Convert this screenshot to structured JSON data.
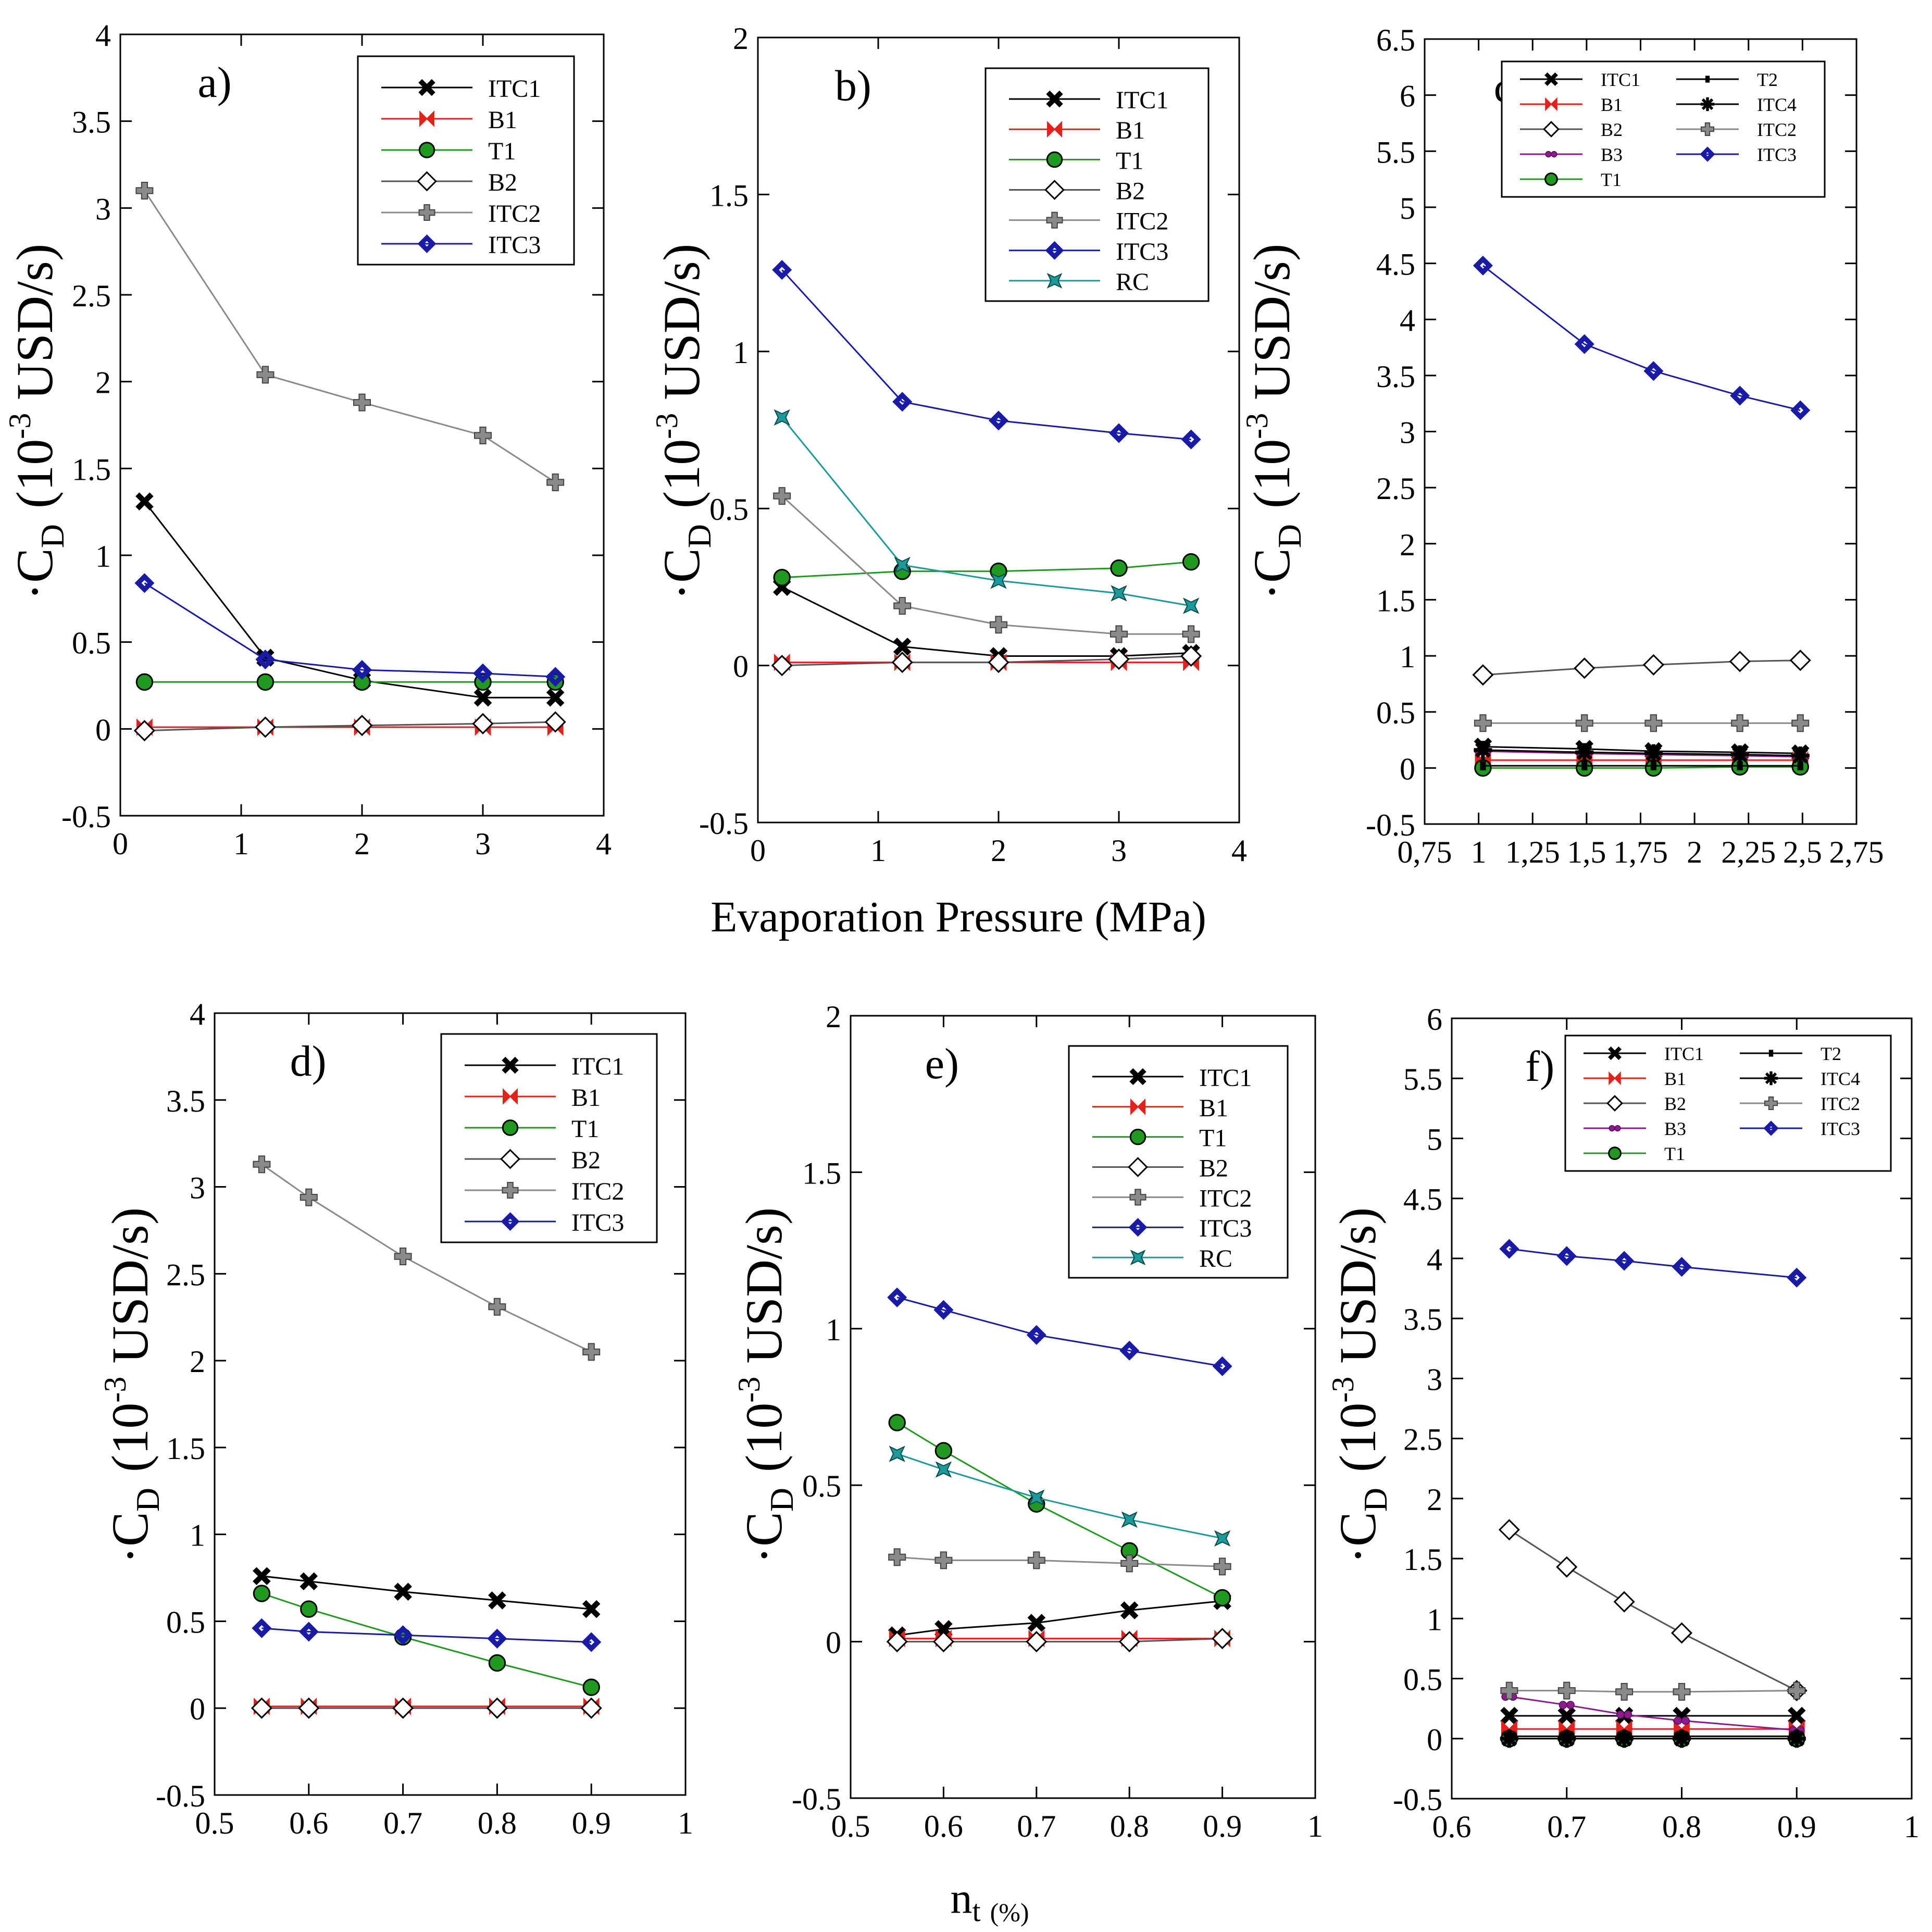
{
  "shared_labels": {
    "xlabel_top": "Evaporation Pressure (MPa)",
    "xlabel_bottom_main": "n",
    "xlabel_bottom_sub": "t",
    "xlabel_bottom_unit": "(%)",
    "ylabel_prefix": "·C",
    "ylabel_sub": "D",
    "ylabel_open": "(10",
    "ylabel_exp": "-3",
    "ylabel_rest": " USD/s)"
  },
  "colors": {
    "ITC1": "#000000",
    "B1": "#e8201a",
    "T1": "#1f9a1f",
    "B2": "#555555",
    "ITC2": "#8a8a8a",
    "ITC3": "#1a1aa8",
    "RC": "#1a9a9a",
    "B3": "#8e1a8e",
    "T2": "#000000",
    "ITC4": "#000000"
  },
  "chart_data": [
    {
      "panel": "a)",
      "type": "line",
      "xlim": [
        0,
        4
      ],
      "ylim": [
        -0.5,
        4
      ],
      "xticks": [
        0,
        1,
        2,
        3,
        4
      ],
      "xtick_labels": [
        "0",
        "1",
        "2",
        "3",
        "4"
      ],
      "yticks": [
        -0.5,
        0,
        0.5,
        1,
        1.5,
        2,
        2.5,
        3,
        3.5,
        4
      ],
      "ytick_labels": [
        "-0.5",
        "0",
        "0.5",
        "1",
        "1.5",
        "2",
        "2.5",
        "3",
        "3.5",
        "4"
      ],
      "legend_cols": 1,
      "legend": [
        "ITC1",
        "B1",
        "T1",
        "B2",
        "ITC2",
        "ITC3"
      ],
      "x": [
        0.2,
        1.2,
        2.0,
        3.0,
        3.6
      ],
      "series": [
        {
          "name": "ITC1",
          "values": [
            1.31,
            0.41,
            0.28,
            0.18,
            0.18
          ]
        },
        {
          "name": "B1",
          "values": [
            0.01,
            0.01,
            0.01,
            0.01,
            0.01
          ]
        },
        {
          "name": "T1",
          "values": [
            0.27,
            0.27,
            0.27,
            0.27,
            0.27
          ]
        },
        {
          "name": "B2",
          "values": [
            -0.01,
            0.01,
            0.02,
            0.03,
            0.04
          ]
        },
        {
          "name": "ITC2",
          "values": [
            3.1,
            2.04,
            1.88,
            1.69,
            1.42
          ]
        },
        {
          "name": "ITC3",
          "values": [
            0.84,
            0.4,
            0.34,
            0.32,
            0.3
          ]
        }
      ]
    },
    {
      "panel": "b)",
      "type": "line",
      "xlim": [
        0,
        4
      ],
      "ylim": [
        -0.5,
        2
      ],
      "xticks": [
        0,
        1,
        2,
        3,
        4
      ],
      "xtick_labels": [
        "0",
        "1",
        "2",
        "3",
        "4"
      ],
      "yticks": [
        -0.5,
        0,
        0.5,
        1,
        1.5,
        2
      ],
      "ytick_labels": [
        "-0.5",
        "0",
        "0.5",
        "1",
        "1.5",
        "2"
      ],
      "legend_cols": 1,
      "legend": [
        "ITC1",
        "B1",
        "T1",
        "B2",
        "ITC2",
        "ITC3",
        "RC"
      ],
      "x": [
        0.2,
        1.2,
        2.0,
        3.0,
        3.6
      ],
      "series": [
        {
          "name": "ITC1",
          "values": [
            0.25,
            0.06,
            0.03,
            0.03,
            0.04
          ]
        },
        {
          "name": "B1",
          "values": [
            0.01,
            0.01,
            0.01,
            0.01,
            0.01
          ]
        },
        {
          "name": "T1",
          "values": [
            0.28,
            0.3,
            0.3,
            0.31,
            0.33
          ]
        },
        {
          "name": "B2",
          "values": [
            0.0,
            0.01,
            0.01,
            0.02,
            0.03
          ]
        },
        {
          "name": "ITC2",
          "values": [
            0.54,
            0.19,
            0.13,
            0.1,
            0.1
          ]
        },
        {
          "name": "ITC3",
          "values": [
            1.26,
            0.84,
            0.78,
            0.74,
            0.72
          ]
        },
        {
          "name": "RC",
          "values": [
            0.79,
            0.32,
            0.27,
            0.23,
            0.19
          ]
        }
      ]
    },
    {
      "panel": "c)",
      "type": "line",
      "xlim": [
        0.75,
        2.75
      ],
      "ylim": [
        -0.5,
        6.5
      ],
      "xticks": [
        0.75,
        1,
        1.25,
        1.5,
        1.75,
        2,
        2.25,
        2.5,
        2.75
      ],
      "xtick_labels": [
        "0,75",
        "1",
        "1,25",
        "1,5",
        "1,75",
        "2",
        "2,25",
        "2,5",
        "2,75"
      ],
      "yticks": [
        -0.5,
        0,
        0.5,
        1,
        1.5,
        2,
        2.5,
        3,
        3.5,
        4,
        4.5,
        5,
        5.5,
        6,
        6.5
      ],
      "ytick_labels": [
        "-0.5",
        "0",
        "0.5",
        "1",
        "1.5",
        "2",
        "2.5",
        "3",
        "3.5",
        "4",
        "4.5",
        "5",
        "5.5",
        "6",
        "6.5"
      ],
      "legend_cols": 2,
      "legend": [
        "ITC1",
        "B1",
        "B2",
        "B3",
        "T1",
        "T2",
        "ITC4",
        "ITC2",
        "ITC3"
      ],
      "x": [
        1.02,
        1.49,
        1.81,
        2.21,
        2.49
      ],
      "series": [
        {
          "name": "ITC1",
          "values": [
            0.19,
            0.17,
            0.15,
            0.14,
            0.13
          ]
        },
        {
          "name": "B1",
          "values": [
            0.07,
            0.07,
            0.07,
            0.07,
            0.07
          ]
        },
        {
          "name": "B2",
          "values": [
            0.83,
            0.89,
            0.92,
            0.95,
            0.96
          ]
        },
        {
          "name": "B3",
          "values": [
            0.15,
            0.13,
            0.12,
            0.11,
            0.1
          ]
        },
        {
          "name": "T1",
          "values": [
            0.0,
            0.0,
            0.0,
            0.01,
            0.01
          ]
        },
        {
          "name": "T2",
          "values": [
            0.02,
            0.02,
            0.02,
            0.02,
            0.02
          ]
        },
        {
          "name": "ITC4",
          "values": [
            0.16,
            0.14,
            0.13,
            0.12,
            0.11
          ]
        },
        {
          "name": "ITC2",
          "values": [
            0.4,
            0.4,
            0.4,
            0.4,
            0.4
          ]
        },
        {
          "name": "ITC3",
          "values": [
            4.48,
            3.78,
            3.54,
            3.32,
            3.19
          ]
        }
      ]
    },
    {
      "panel": "d)",
      "type": "line",
      "xlim": [
        0.5,
        1
      ],
      "ylim": [
        -0.5,
        4
      ],
      "xticks": [
        0.5,
        0.6,
        0.7,
        0.8,
        0.9,
        1
      ],
      "xtick_labels": [
        "0.5",
        "0.6",
        "0.7",
        "0.8",
        "0.9",
        "1"
      ],
      "yticks": [
        -0.5,
        0,
        0.5,
        1,
        1.5,
        2,
        2.5,
        3,
        3.5,
        4
      ],
      "ytick_labels": [
        "-0.5",
        "0",
        "0.5",
        "1",
        "1.5",
        "2",
        "2.5",
        "3",
        "3.5",
        "4"
      ],
      "legend_cols": 1,
      "legend": [
        "ITC1",
        "B1",
        "T1",
        "B2",
        "ITC2",
        "ITC3"
      ],
      "x": [
        0.55,
        0.6,
        0.7,
        0.8,
        0.9
      ],
      "series": [
        {
          "name": "ITC1",
          "values": [
            0.76,
            0.73,
            0.67,
            0.62,
            0.57
          ]
        },
        {
          "name": "B1",
          "values": [
            0.01,
            0.01,
            0.01,
            0.01,
            0.01
          ]
        },
        {
          "name": "T1",
          "values": [
            0.66,
            0.57,
            0.41,
            0.26,
            0.12
          ]
        },
        {
          "name": "B2",
          "values": [
            0.0,
            0.0,
            0.0,
            0.0,
            0.0
          ]
        },
        {
          "name": "ITC2",
          "values": [
            3.13,
            2.94,
            2.6,
            2.31,
            2.05
          ]
        },
        {
          "name": "ITC3",
          "values": [
            0.46,
            0.44,
            0.42,
            0.4,
            0.38
          ]
        }
      ]
    },
    {
      "panel": "e)",
      "type": "line",
      "xlim": [
        0.5,
        1
      ],
      "ylim": [
        -0.5,
        2
      ],
      "xticks": [
        0.5,
        0.6,
        0.7,
        0.8,
        0.9,
        1
      ],
      "xtick_labels": [
        "0.5",
        "0.6",
        "0.7",
        "0.8",
        "0.9",
        "1"
      ],
      "yticks": [
        -0.5,
        0,
        0.5,
        1,
        1.5,
        2
      ],
      "ytick_labels": [
        "-0.5",
        "0",
        "0.5",
        "1",
        "1.5",
        "2"
      ],
      "legend_cols": 1,
      "legend": [
        "ITC1",
        "B1",
        "T1",
        "B2",
        "ITC2",
        "ITC3",
        "RC"
      ],
      "x": [
        0.55,
        0.6,
        0.7,
        0.8,
        0.9
      ],
      "series": [
        {
          "name": "ITC1",
          "values": [
            0.02,
            0.04,
            0.06,
            0.1,
            0.13
          ]
        },
        {
          "name": "B1",
          "values": [
            0.01,
            0.01,
            0.01,
            0.01,
            0.01
          ]
        },
        {
          "name": "T1",
          "values": [
            0.7,
            0.61,
            0.44,
            0.29,
            0.14
          ]
        },
        {
          "name": "B2",
          "values": [
            0.0,
            0.0,
            0.0,
            0.0,
            0.01
          ]
        },
        {
          "name": "ITC2",
          "values": [
            0.27,
            0.26,
            0.26,
            0.25,
            0.24
          ]
        },
        {
          "name": "ITC3",
          "values": [
            1.1,
            1.06,
            0.98,
            0.93,
            0.88
          ]
        },
        {
          "name": "RC",
          "values": [
            0.6,
            0.55,
            0.46,
            0.39,
            0.33
          ]
        }
      ]
    },
    {
      "panel": "f)",
      "type": "line",
      "xlim": [
        0.6,
        1
      ],
      "ylim": [
        -0.5,
        6
      ],
      "xticks": [
        0.6,
        0.7,
        0.8,
        0.9,
        1
      ],
      "xtick_labels": [
        "0.6",
        "0.7",
        "0.8",
        "0.9",
        "1"
      ],
      "yticks": [
        -0.5,
        0,
        0.5,
        1,
        1.5,
        2,
        2.5,
        3,
        3.5,
        4,
        4.5,
        5,
        5.5,
        6
      ],
      "ytick_labels": [
        "-0.5",
        "0",
        "0.5",
        "1",
        "1.5",
        "2",
        "2.5",
        "3",
        "3.5",
        "4",
        "4.5",
        "5",
        "5.5",
        "6"
      ],
      "legend_cols": 2,
      "legend": [
        "ITC1",
        "B1",
        "B2",
        "B3",
        "T1",
        "T2",
        "ITC4",
        "ITC2",
        "ITC3"
      ],
      "x": [
        0.65,
        0.7,
        0.75,
        0.8,
        0.9
      ],
      "series": [
        {
          "name": "ITC1",
          "values": [
            0.19,
            0.19,
            0.19,
            0.19,
            0.19
          ]
        },
        {
          "name": "B1",
          "values": [
            0.08,
            0.08,
            0.08,
            0.08,
            0.08
          ]
        },
        {
          "name": "B2",
          "values": [
            1.74,
            1.43,
            1.14,
            0.88,
            0.4
          ]
        },
        {
          "name": "B3",
          "values": [
            0.35,
            0.28,
            0.2,
            0.15,
            0.07
          ]
        },
        {
          "name": "T1",
          "values": [
            0.0,
            0.0,
            0.0,
            0.0,
            0.0
          ]
        },
        {
          "name": "T2",
          "values": [
            0.02,
            0.02,
            0.02,
            0.02,
            0.02
          ]
        },
        {
          "name": "ITC4",
          "values": [
            0.0,
            0.0,
            0.0,
            0.0,
            0.0
          ]
        },
        {
          "name": "ITC2",
          "values": [
            0.4,
            0.4,
            0.39,
            0.39,
            0.4
          ]
        },
        {
          "name": "ITC3",
          "values": [
            4.08,
            4.02,
            3.98,
            3.93,
            3.84
          ]
        }
      ]
    }
  ]
}
